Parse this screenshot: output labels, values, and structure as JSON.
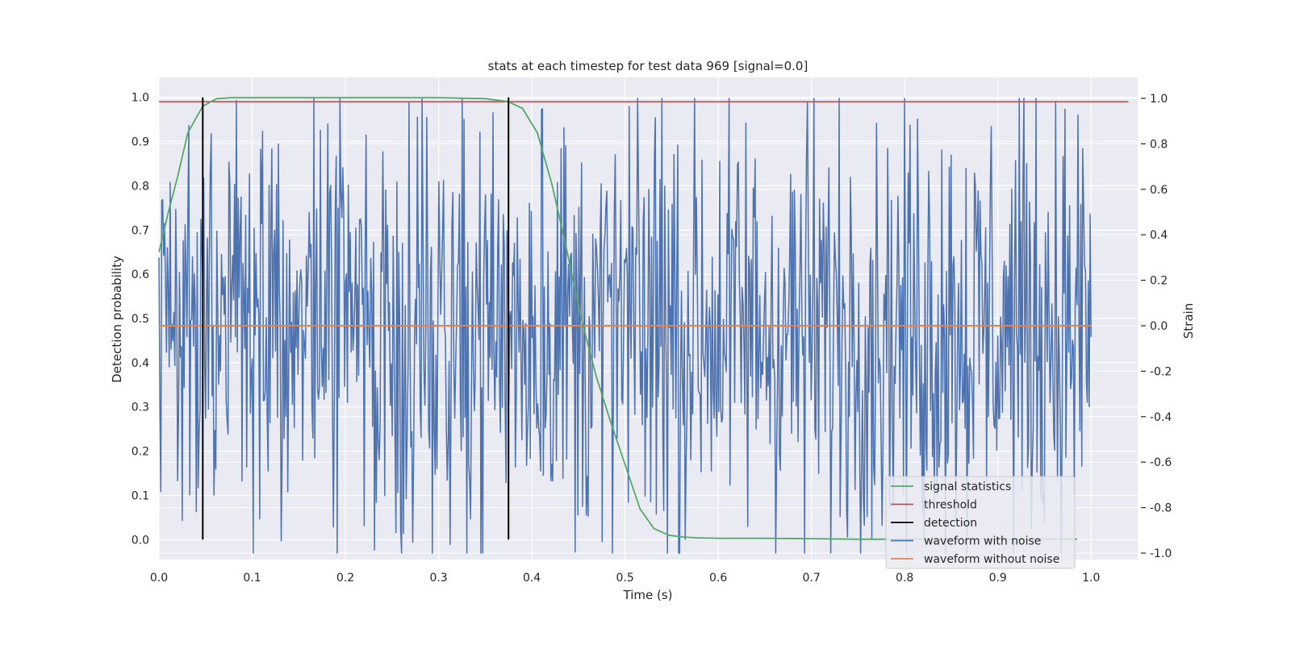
{
  "chart_data": {
    "type": "line",
    "title": "stats at each timestep for test data 969 [signal=0.0]",
    "xlabel": "Time (s)",
    "ylabel": "Detection probability",
    "y2label": "Strain",
    "xlim": [
      0.0,
      1.05
    ],
    "ylim": [
      -0.045,
      1.045
    ],
    "y2lim": [
      -1.0,
      1.0
    ],
    "xticks": [
      0.0,
      0.1,
      0.2,
      0.3,
      0.4,
      0.5,
      0.6,
      0.7,
      0.8,
      0.9,
      1.0
    ],
    "yticks": [
      0.0,
      0.1,
      0.2,
      0.3,
      0.4,
      0.5,
      0.6,
      0.7,
      0.8,
      0.9,
      1.0
    ],
    "y2ticks": [
      -1.0,
      -0.8,
      -0.6,
      -0.4,
      -0.2,
      0.0,
      0.2,
      0.4,
      0.6,
      0.8,
      1.0
    ],
    "grid": true,
    "legend_position": "lower-right",
    "colors": {
      "background": "#eaeaf2",
      "grid": "#ffffff",
      "signal_statistics": "#55a868",
      "threshold": "#c44e52",
      "detection": "#000000",
      "waveform_with_noise": "#4c72b0",
      "waveform_without_noise": "#dd8452"
    },
    "series": [
      {
        "name": "signal statistics",
        "axis": "left",
        "x": [
          0.0,
          0.01,
          0.02,
          0.031,
          0.047,
          0.062,
          0.078,
          0.1,
          0.15,
          0.2,
          0.25,
          0.3,
          0.35,
          0.375,
          0.39,
          0.406,
          0.422,
          0.438,
          0.453,
          0.469,
          0.484,
          0.5,
          0.516,
          0.531,
          0.547,
          0.562,
          0.578,
          0.6,
          0.65,
          0.7,
          0.75,
          0.8,
          0.85,
          0.9,
          0.95,
          0.985
        ],
        "values": [
          0.65,
          0.74,
          0.82,
          0.92,
          0.98,
          0.997,
          0.999,
          0.999,
          0.999,
          0.999,
          0.999,
          0.999,
          0.997,
          0.99,
          0.975,
          0.92,
          0.8,
          0.65,
          0.5,
          0.37,
          0.27,
          0.17,
          0.07,
          0.025,
          0.01,
          0.006,
          0.004,
          0.003,
          0.003,
          0.002,
          0.001,
          0.001,
          0.001,
          0.001,
          0.001,
          0.001
        ]
      },
      {
        "name": "threshold",
        "axis": "left",
        "x": [
          0.0,
          1.04
        ],
        "values": [
          0.99,
          0.99
        ]
      },
      {
        "name": "detection",
        "axis": "left",
        "type": "vline",
        "x": [
          0.047,
          0.375
        ],
        "values": [
          0.0,
          1.0
        ]
      },
      {
        "name": "waveform with noise",
        "axis": "right",
        "generated": true,
        "x_range": [
          0.0,
          1.0
        ],
        "samples": 1000,
        "amplitude_range": [
          -1.0,
          1.0
        ],
        "notable_points": [
          {
            "x": 0.0,
            "y": 0.3
          },
          {
            "x": 0.002,
            "y": -0.73
          },
          {
            "x": 0.012,
            "y": 0.63
          },
          {
            "x": 0.055,
            "y": 0.68
          },
          {
            "x": 0.22,
            "y": -0.88
          },
          {
            "x": 0.41,
            "y": 0.95
          },
          {
            "x": 0.475,
            "y": -0.95
          },
          {
            "x": 0.54,
            "y": 1.0
          },
          {
            "x": 0.565,
            "y": -0.94
          },
          {
            "x": 0.85,
            "y": 0.75
          },
          {
            "x": 1.0,
            "y": -0.05
          }
        ]
      },
      {
        "name": "waveform without noise",
        "axis": "right",
        "x": [
          0.0,
          1.0
        ],
        "values": [
          0.0,
          0.0
        ]
      }
    ],
    "legend": [
      "signal statistics",
      "threshold",
      "detection",
      "waveform with noise",
      "waveform without noise"
    ]
  }
}
